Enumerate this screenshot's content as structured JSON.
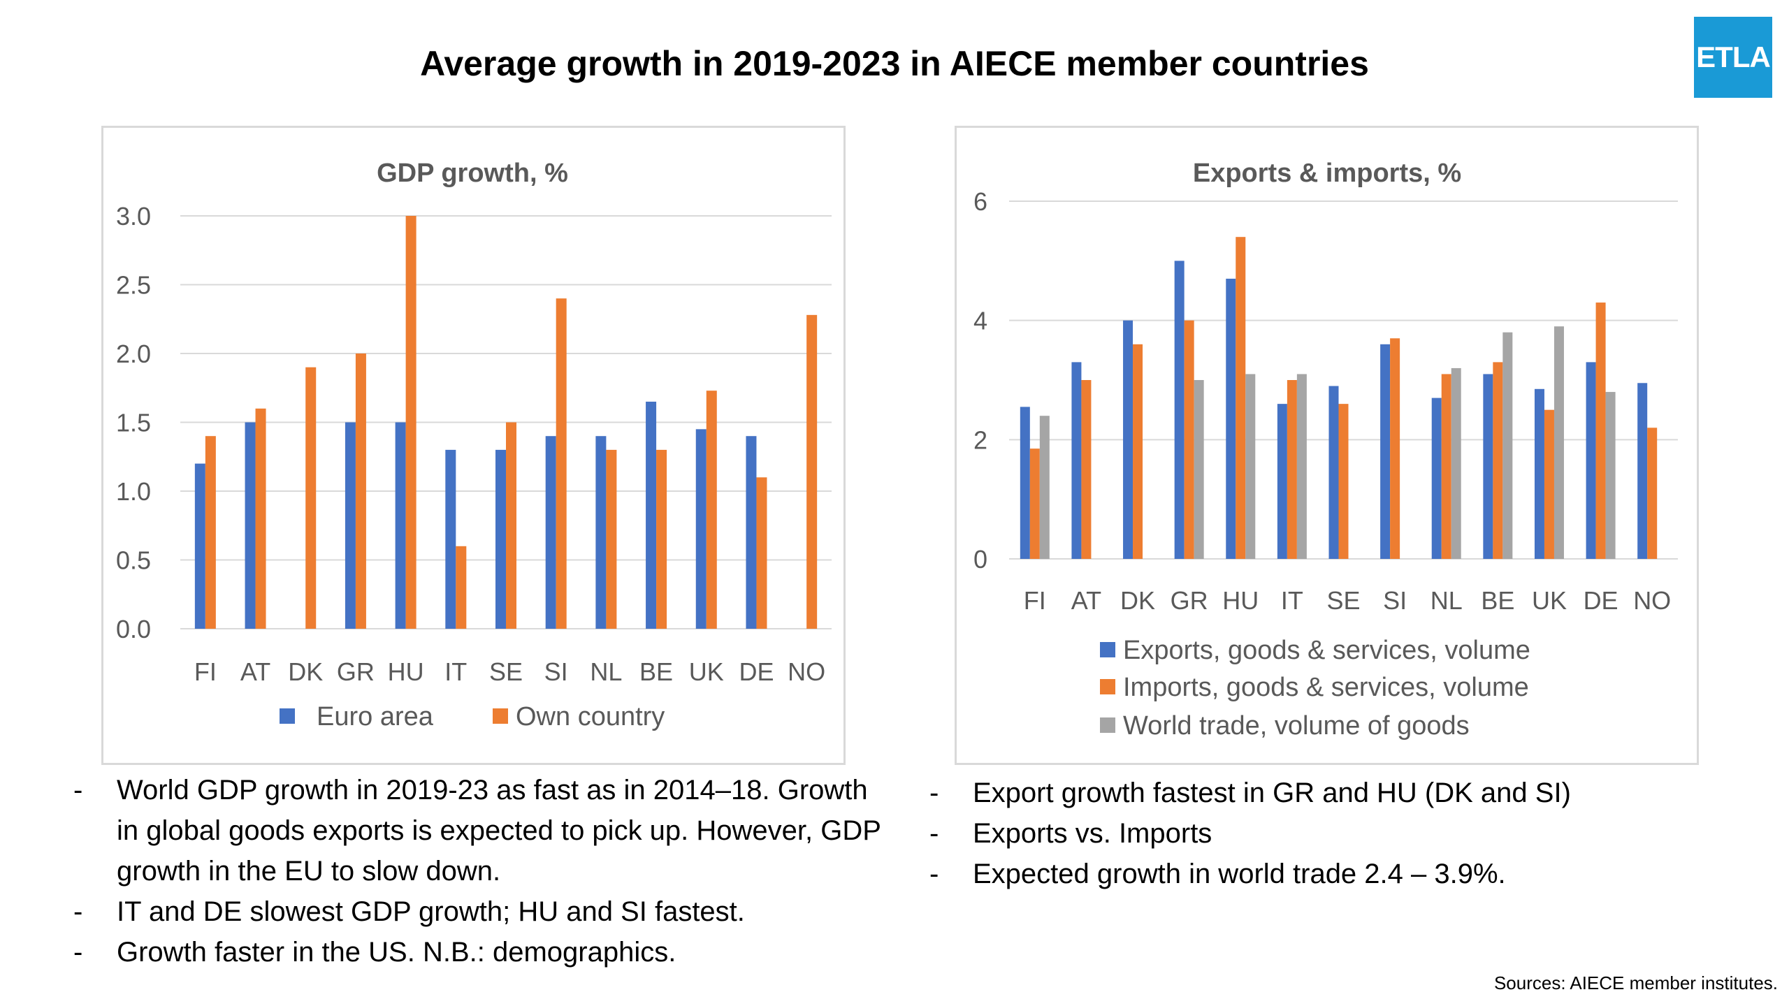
{
  "slide": {
    "title": "Average growth in 2019-2023 in AIECE member countries",
    "logo_text": "ETLA",
    "source": "Sources: AIECE member institutes."
  },
  "colors": {
    "blue": "#4472c4",
    "orange": "#ed7d31",
    "gray": "#a5a5a5",
    "grid": "#d9d9d9",
    "axis_text": "#595959",
    "logo": "#1a9ad6"
  },
  "left_notes": [
    "World GDP growth in 2019-23 as fast as in 2014–18. Growth in global goods exports is expected to pick up. However, GDP growth in the EU to slow down.",
    "IT and DE slowest GDP growth; HU and SI fastest.",
    "Growth faster in the US. N.B.: demographics."
  ],
  "right_notes": [
    "Export growth fastest in GR and HU (DK and SI)",
    "Exports vs. Imports",
    "Expected growth in world trade 2.4 – 3.9%."
  ],
  "chart_data": [
    {
      "type": "bar",
      "title": "GDP growth, %",
      "categories": [
        "FI",
        "AT",
        "DK",
        "GR",
        "HU",
        "IT",
        "SE",
        "SI",
        "NL",
        "BE",
        "UK",
        "DE",
        "NO"
      ],
      "series": [
        {
          "name": "Euro area",
          "color": "#4472c4",
          "values": [
            1.2,
            1.5,
            null,
            1.5,
            1.5,
            1.3,
            1.3,
            1.4,
            1.4,
            1.65,
            1.45,
            1.4,
            null
          ]
        },
        {
          "name": "Own country",
          "color": "#ed7d31",
          "values": [
            1.4,
            1.6,
            1.9,
            2.0,
            3.0,
            0.6,
            1.5,
            2.4,
            1.3,
            1.3,
            1.73,
            1.1,
            2.28
          ]
        }
      ],
      "yticks": [
        "0.0",
        "0.5",
        "1.0",
        "1.5",
        "2.0",
        "2.5",
        "3.0"
      ],
      "ylim": [
        0,
        3.0
      ],
      "grid": true,
      "legend": "bottom"
    },
    {
      "type": "bar",
      "title": "Exports & imports, %",
      "categories": [
        "FI",
        "AT",
        "DK",
        "GR",
        "HU",
        "IT",
        "SE",
        "SI",
        "NL",
        "BE",
        "UK",
        "DE",
        "NO"
      ],
      "series": [
        {
          "name": "Exports, goods & services, volume",
          "color": "#4472c4",
          "values": [
            2.55,
            3.3,
            4.0,
            5.0,
            4.7,
            2.6,
            2.9,
            3.6,
            2.7,
            3.1,
            2.85,
            3.3,
            2.95
          ]
        },
        {
          "name": "Imports, goods & services, volume",
          "color": "#ed7d31",
          "values": [
            1.85,
            3.0,
            3.6,
            4.0,
            5.4,
            3.0,
            2.6,
            3.7,
            3.1,
            3.3,
            2.5,
            4.3,
            2.2
          ]
        },
        {
          "name": "World trade, volume of goods",
          "color": "#a5a5a5",
          "values": [
            2.4,
            null,
            null,
            3.0,
            3.1,
            3.1,
            null,
            null,
            3.2,
            3.8,
            3.9,
            2.8,
            null
          ]
        }
      ],
      "yticks": [
        "0",
        "2",
        "4",
        "6"
      ],
      "ylim": [
        0,
        6
      ],
      "grid": true,
      "legend": "bottom"
    }
  ]
}
